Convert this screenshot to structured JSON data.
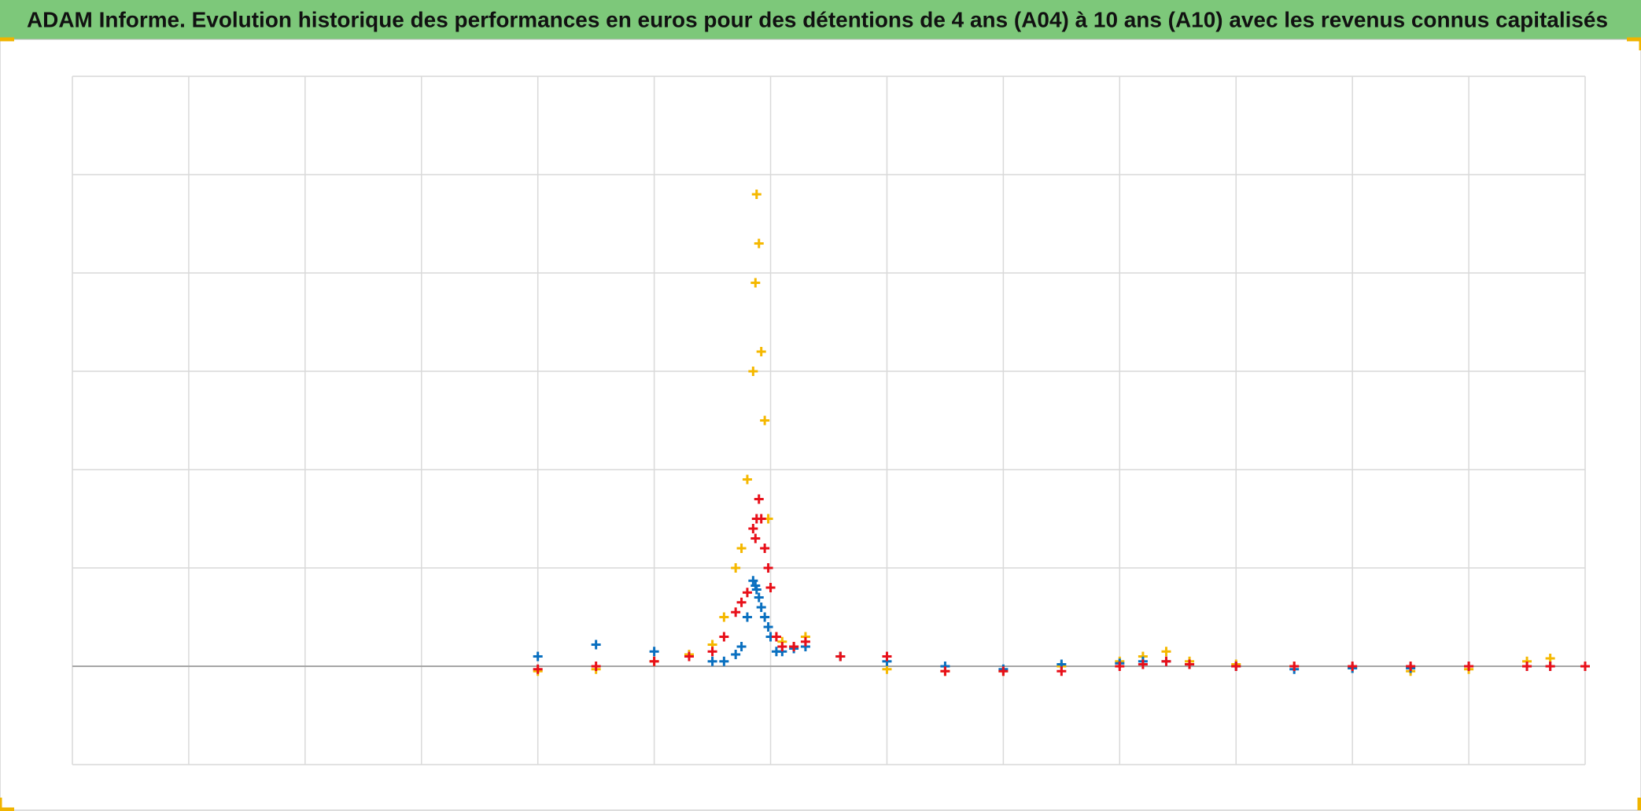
{
  "chart_data": {
    "type": "scatter",
    "title": "ADAM Informe. Evolution historique des performances en euros pour des détentions de 4 ans (A04) à 10 ans (A10) avec les revenus connus capitalisés",
    "title_background": "#7dc87a",
    "x": [
      4,
      4.5,
      5,
      5.3,
      5.5,
      5.6,
      5.7,
      5.75,
      5.8,
      5.85,
      5.87,
      5.88,
      5.9,
      5.92,
      5.95,
      5.98,
      6.0,
      6.05,
      6.1,
      6.2,
      6.3,
      6.6,
      7,
      7.5,
      8,
      8.5,
      9,
      9.2,
      9.4,
      9.6,
      10,
      10.5,
      11,
      11.5,
      12,
      12.5,
      12.7,
      13
    ],
    "series": [
      {
        "color": "#f5b800",
        "values": [
          -0.05,
          -0.03,
          0.05,
          0.12,
          0.22,
          0.5,
          1.0,
          1.2,
          1.9,
          3.0,
          3.9,
          4.8,
          4.3,
          3.2,
          2.5,
          1.5,
          0.8,
          0.3,
          0.25,
          0.2,
          0.3,
          0.1,
          -0.03,
          -0.05,
          -0.05,
          0,
          0.05,
          0.1,
          0.15,
          0.05,
          0.02,
          0,
          -0.02,
          -0.05,
          -0.03,
          0.05,
          0.08,
          0
        ]
      },
      {
        "color": "#0a70c0",
        "values": [
          0.1,
          0.22,
          0.15,
          0.1,
          0.05,
          0.05,
          0.12,
          0.2,
          0.5,
          0.87,
          0.82,
          0.78,
          0.7,
          0.6,
          0.5,
          0.4,
          0.3,
          0.15,
          0.15,
          0.18,
          0.2,
          0.1,
          0.05,
          0,
          -0.03,
          0.02,
          0.03,
          0.05,
          0.05,
          0.02,
          0,
          -0.03,
          -0.02,
          -0.02,
          0,
          0,
          0,
          0
        ]
      },
      {
        "color": "#e8101a",
        "values": [
          -0.03,
          0,
          0.05,
          0.1,
          0.15,
          0.3,
          0.55,
          0.65,
          0.75,
          1.4,
          1.3,
          1.5,
          1.7,
          1.5,
          1.2,
          1.0,
          0.8,
          0.3,
          0.2,
          0.2,
          0.25,
          0.1,
          0.1,
          -0.05,
          -0.05,
          -0.05,
          0,
          0.02,
          0.05,
          0.02,
          0,
          0,
          0,
          0,
          0,
          0,
          0,
          0
        ]
      }
    ],
    "xlim": [
      0,
      13
    ],
    "xticks": [
      0,
      1,
      2,
      3,
      4,
      5,
      6,
      7,
      8,
      9,
      10,
      11,
      12,
      13
    ],
    "ylim": [
      -1,
      6
    ],
    "yticks": [
      -1,
      0,
      1,
      2,
      3,
      4,
      5,
      6
    ],
    "grid": true,
    "tick_labels": false
  }
}
